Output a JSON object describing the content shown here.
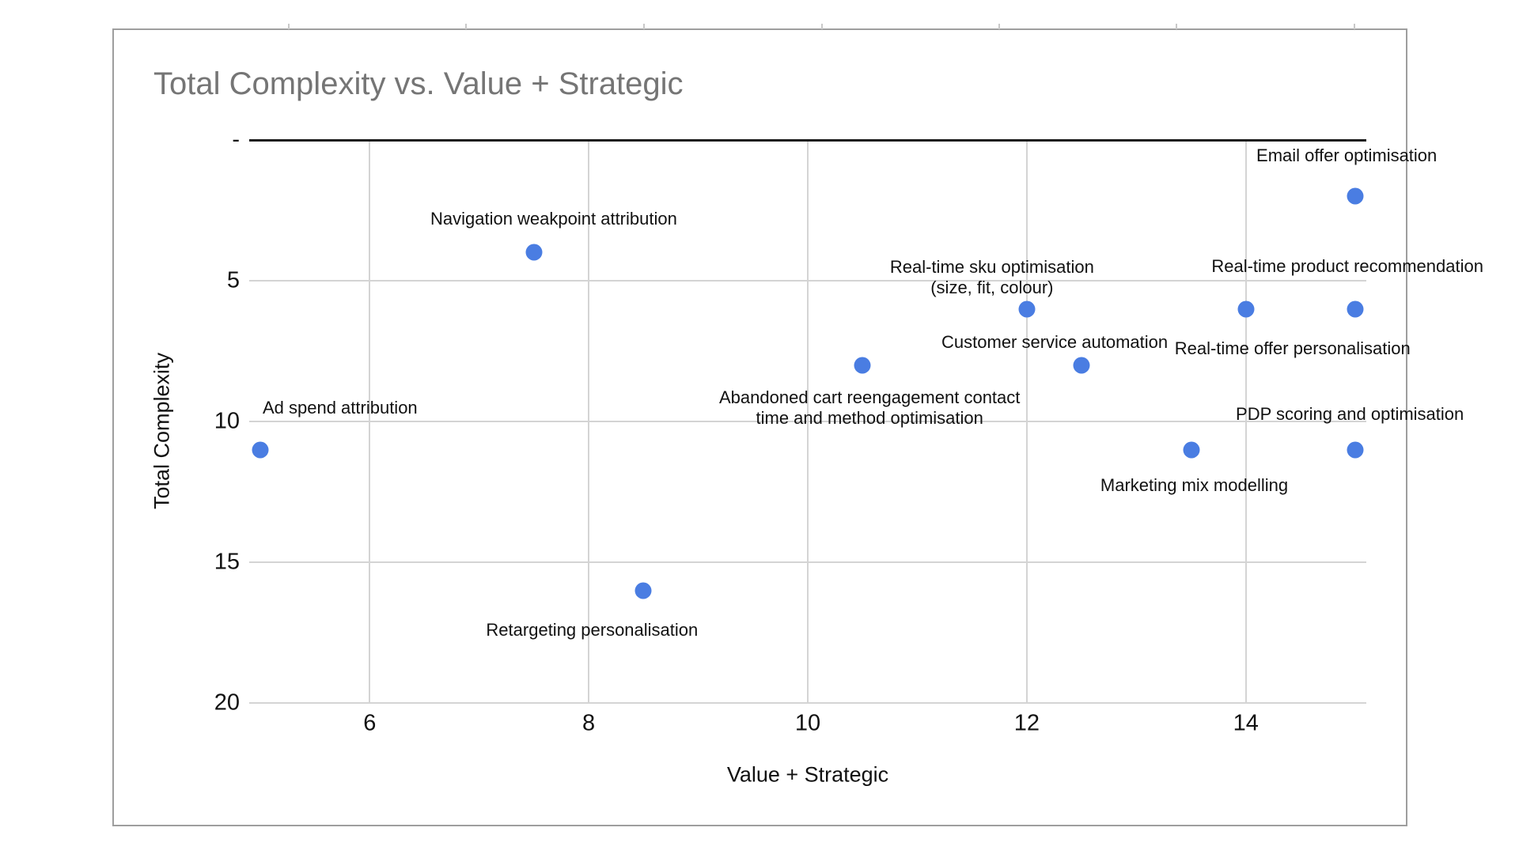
{
  "chart_data": {
    "type": "scatter",
    "title": "Total Complexity vs. Value + Strategic",
    "xlabel": "Value + Strategic",
    "ylabel": "Total Complexity",
    "legend": "none",
    "grid": true,
    "x_axis": {
      "min": 4.9,
      "max": 15.1,
      "ticks": [
        6,
        8,
        10,
        12,
        14
      ],
      "tick_labels": [
        "6",
        "8",
        "10",
        "12",
        "14"
      ]
    },
    "y_axis": {
      "min": 0,
      "max": 20,
      "reversed": true,
      "ticks": [
        0,
        5,
        10,
        15,
        20
      ],
      "tick_labels": [
        "-",
        "5",
        "10",
        "15",
        "20"
      ]
    },
    "colors": {
      "point": "#4a7de2",
      "title_text": "#757575",
      "grid": "#d4d4d4",
      "axis_line": "#1c1c1c",
      "frame_border": "#9e9e9e",
      "label_text": "#111111"
    },
    "points": [
      {
        "label": "Ad spend attribution",
        "x": 5,
        "y": 11,
        "label_lines": [
          "Ad spend attribution"
        ],
        "label_offset": [
          101,
          -53
        ]
      },
      {
        "label": "Navigation weakpoint attribution",
        "x": 7.5,
        "y": 4,
        "label_lines": [
          "Navigation weakpoint attribution"
        ],
        "label_offset": [
          25,
          -42
        ]
      },
      {
        "label": "Retargeting personalisation",
        "x": 8.5,
        "y": 16,
        "label_lines": [
          "Retargeting personalisation"
        ],
        "label_offset": [
          -65,
          50
        ]
      },
      {
        "label": "Abandoned cart reengagement contact time and method optimisation",
        "x": 10.5,
        "y": 8,
        "label_lines": [
          "Abandoned cart reengagement contact",
          "time and method optimisation"
        ],
        "label_offset": [
          9,
          54
        ]
      },
      {
        "label": "Real-time sku optimisation (size, fit, colour)",
        "x": 12,
        "y": 6,
        "label_lines": [
          "Real-time sku optimisation",
          "(size, fit, colour)"
        ],
        "label_offset": [
          -44,
          -40
        ]
      },
      {
        "label": "Customer service automation",
        "x": 12.5,
        "y": 8,
        "label_lines": [
          "Customer service automation"
        ],
        "label_offset": [
          -34,
          -29
        ]
      },
      {
        "label": "Marketing mix modelling",
        "x": 13.5,
        "y": 11,
        "label_lines": [
          "Marketing mix modelling"
        ],
        "label_offset": [
          4,
          45
        ]
      },
      {
        "label": "Real-time offer personalisation",
        "x": 14,
        "y": 6,
        "label_lines": [
          "Real-time offer personalisation"
        ],
        "label_offset": [
          59,
          50
        ]
      },
      {
        "label": "Real-time product recommendation",
        "x": 15,
        "y": 6,
        "label_lines": [
          "Real-time product recommendation"
        ],
        "label_offset": [
          -10,
          -54
        ]
      },
      {
        "label": "Email offer optimisation",
        "x": 15,
        "y": 2,
        "label_lines": [
          "Email offer optimisation"
        ],
        "label_offset": [
          -11,
          -51
        ]
      },
      {
        "label": "PDP scoring and optimisation",
        "x": 15,
        "y": 11,
        "label_lines": [
          "PDP scoring and optimisation"
        ],
        "label_offset": [
          -7,
          -45
        ]
      }
    ]
  }
}
